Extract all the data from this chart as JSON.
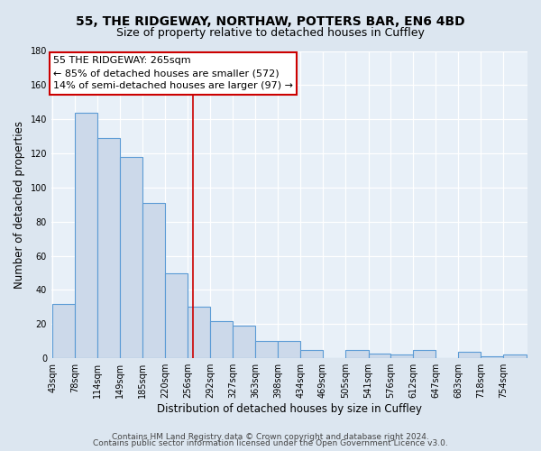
{
  "title1": "55, THE RIDGEWAY, NORTHAW, POTTERS BAR, EN6 4BD",
  "title2": "Size of property relative to detached houses in Cuffley",
  "xlabel": "Distribution of detached houses by size in Cuffley",
  "ylabel": "Number of detached properties",
  "bar_labels": [
    "43sqm",
    "78sqm",
    "114sqm",
    "149sqm",
    "185sqm",
    "220sqm",
    "256sqm",
    "292sqm",
    "327sqm",
    "363sqm",
    "398sqm",
    "434sqm",
    "469sqm",
    "505sqm",
    "541sqm",
    "576sqm",
    "612sqm",
    "647sqm",
    "683sqm",
    "718sqm",
    "754sqm"
  ],
  "bar_edges": [
    43,
    78,
    114,
    149,
    185,
    220,
    256,
    292,
    327,
    363,
    398,
    434,
    469,
    505,
    541,
    576,
    612,
    647,
    683,
    718,
    754,
    790
  ],
  "bar_heights": [
    32,
    144,
    129,
    118,
    91,
    50,
    30,
    22,
    19,
    10,
    10,
    5,
    0,
    5,
    3,
    2,
    5,
    0,
    4,
    1,
    2
  ],
  "bar_color": "#ccd9ea",
  "bar_edge_color": "#5b9bd5",
  "vline_x": 265,
  "vline_color": "#cc0000",
  "annotation_title": "55 THE RIDGEWAY: 265sqm",
  "annotation_line1": "← 85% of detached houses are smaller (572)",
  "annotation_line2": "14% of semi-detached houses are larger (97) →",
  "annotation_box_facecolor": "#ffffff",
  "annotation_box_edgecolor": "#cc0000",
  "ylim": [
    0,
    180
  ],
  "yticks": [
    0,
    20,
    40,
    60,
    80,
    100,
    120,
    140,
    160,
    180
  ],
  "footer1": "Contains HM Land Registry data © Crown copyright and database right 2024.",
  "footer2": "Contains public sector information licensed under the Open Government Licence v3.0.",
  "bg_color": "#dce6f0",
  "plot_bg_color": "#e8f0f8",
  "title_fontsize": 10,
  "subtitle_fontsize": 9,
  "axis_label_fontsize": 8.5,
  "tick_fontsize": 7,
  "annotation_fontsize": 8,
  "footer_fontsize": 6.5,
  "grid_color": "#ffffff"
}
